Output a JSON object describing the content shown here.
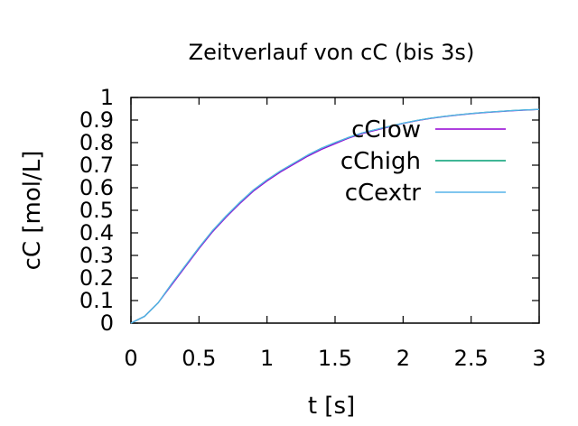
{
  "chart_data": {
    "type": "line",
    "title": "Zeitverlauf von cC (bis 3s)",
    "xlabel": "t [s]",
    "ylabel": "cC [mol/L]",
    "xlim": [
      0,
      3
    ],
    "ylim": [
      0,
      1
    ],
    "x_ticks": [
      "0",
      "0.5",
      "1",
      "1.5",
      "2",
      "2.5",
      "3"
    ],
    "y_ticks": [
      "0",
      "0.1",
      "0.2",
      "0.3",
      "0.4",
      "0.5",
      "0.6",
      "0.7",
      "0.8",
      "0.9",
      "1"
    ],
    "grid": false,
    "legend_position": "top-right",
    "x": [
      0,
      0.1,
      0.2,
      0.3,
      0.4,
      0.5,
      0.6,
      0.7,
      0.8,
      0.9,
      1.0,
      1.1,
      1.2,
      1.3,
      1.4,
      1.5,
      1.6,
      1.7,
      1.8,
      1.9,
      2.0,
      2.1,
      2.2,
      2.3,
      2.4,
      2.5,
      2.6,
      2.7,
      2.8,
      2.9,
      3.0
    ],
    "series": [
      {
        "name": "cClow",
        "color": "#9400d3",
        "values": [
          0,
          0.03,
          0.09,
          0.17,
          0.25,
          0.33,
          0.405,
          0.47,
          0.53,
          0.585,
          0.63,
          0.67,
          0.705,
          0.74,
          0.77,
          0.795,
          0.82,
          0.84,
          0.855,
          0.87,
          0.885,
          0.897,
          0.907,
          0.915,
          0.922,
          0.928,
          0.933,
          0.937,
          0.941,
          0.944,
          0.947
        ]
      },
      {
        "name": "cChigh",
        "color": "#009e73",
        "values": [
          0,
          0.03,
          0.09,
          0.175,
          0.255,
          0.335,
          0.41,
          0.475,
          0.535,
          0.59,
          0.635,
          0.675,
          0.71,
          0.745,
          0.775,
          0.8,
          0.823,
          0.843,
          0.858,
          0.872,
          0.886,
          0.898,
          0.908,
          0.916,
          0.923,
          0.929,
          0.934,
          0.938,
          0.942,
          0.945,
          0.947
        ]
      },
      {
        "name": "cCextr",
        "color": "#56b4e9",
        "values": [
          0,
          0.03,
          0.09,
          0.175,
          0.255,
          0.335,
          0.41,
          0.475,
          0.535,
          0.59,
          0.635,
          0.675,
          0.71,
          0.745,
          0.775,
          0.8,
          0.823,
          0.843,
          0.858,
          0.872,
          0.886,
          0.898,
          0.908,
          0.916,
          0.923,
          0.929,
          0.934,
          0.938,
          0.942,
          0.945,
          0.947
        ]
      }
    ]
  }
}
